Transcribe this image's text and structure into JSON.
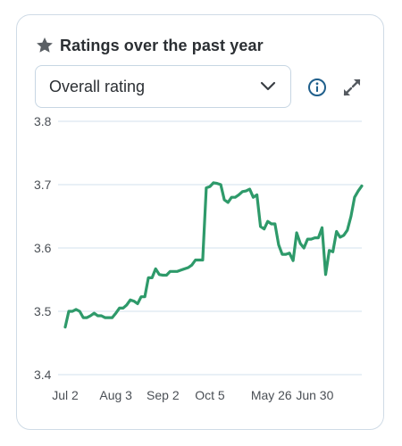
{
  "header": {
    "title": "Ratings over the past year",
    "icon": "star-icon"
  },
  "select": {
    "value": "Overall rating",
    "icon": "chevron-down-icon"
  },
  "actions": {
    "info_icon": "info-icon",
    "expand_icon": "expand-icon"
  },
  "colors": {
    "line": "#2e9a6a",
    "grid": "#d3e2ee",
    "accent": "#1f5f8b"
  },
  "chart_data": {
    "type": "line",
    "title": "Ratings over the past year",
    "xlabel": "",
    "ylabel": "",
    "ylim": [
      3.4,
      3.8
    ],
    "yticks": [
      "3.8",
      "3.7",
      "3.6",
      "3.5",
      "3.4"
    ],
    "xticks": [
      "Jul 2",
      "Aug 3",
      "Sep 2",
      "Oct 5",
      "May 26",
      "Jun 30"
    ],
    "xtick_index": [
      0,
      14,
      27,
      40,
      57,
      69
    ],
    "grid": true,
    "series": [
      {
        "name": "",
        "values": [
          3.475,
          3.5,
          3.5,
          3.503,
          3.5,
          3.49,
          3.49,
          3.493,
          3.497,
          3.493,
          3.493,
          3.49,
          3.49,
          3.49,
          3.497,
          3.505,
          3.505,
          3.51,
          3.518,
          3.516,
          3.512,
          3.523,
          3.523,
          3.553,
          3.553,
          3.567,
          3.558,
          3.557,
          3.557,
          3.563,
          3.563,
          3.563,
          3.565,
          3.567,
          3.569,
          3.573,
          3.581,
          3.581,
          3.581,
          3.695,
          3.697,
          3.703,
          3.702,
          3.7,
          3.676,
          3.672,
          3.68,
          3.68,
          3.684,
          3.689,
          3.69,
          3.693,
          3.68,
          3.684,
          3.634,
          3.63,
          3.642,
          3.638,
          3.638,
          3.605,
          3.59,
          3.59,
          3.592,
          3.58,
          3.624,
          3.607,
          3.6,
          3.614,
          3.614,
          3.616,
          3.616,
          3.632,
          3.558,
          3.596,
          3.594,
          3.626,
          3.617,
          3.62,
          3.628,
          3.65,
          3.68,
          3.69,
          3.698
        ]
      }
    ]
  }
}
